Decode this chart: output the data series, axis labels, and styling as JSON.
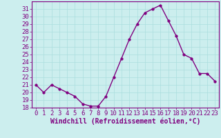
{
  "x": [
    0,
    1,
    2,
    3,
    4,
    5,
    6,
    7,
    8,
    9,
    10,
    11,
    12,
    13,
    14,
    15,
    16,
    17,
    18,
    19,
    20,
    21,
    22,
    23
  ],
  "y": [
    21.0,
    20.0,
    21.0,
    20.5,
    20.0,
    19.5,
    18.5,
    18.2,
    18.2,
    19.5,
    22.0,
    24.5,
    27.0,
    29.0,
    30.5,
    31.0,
    31.5,
    29.5,
    27.5,
    25.0,
    24.5,
    22.5,
    22.5,
    21.5
  ],
  "line_color": "#800080",
  "marker_color": "#800080",
  "bg_color": "#cceeee",
  "grid_color": "#aadddd",
  "axis_color": "#800080",
  "tick_color": "#800080",
  "xlabel": "Windchill (Refroidissement éolien,°C)",
  "ylim": [
    18,
    32
  ],
  "xlim": [
    -0.5,
    23.5
  ],
  "yticks": [
    18,
    19,
    20,
    21,
    22,
    23,
    24,
    25,
    26,
    27,
    28,
    29,
    30,
    31
  ],
  "xticks": [
    0,
    1,
    2,
    3,
    4,
    5,
    6,
    7,
    8,
    9,
    10,
    11,
    12,
    13,
    14,
    15,
    16,
    17,
    18,
    19,
    20,
    21,
    22,
    23
  ],
  "font_size": 6.5,
  "xlabel_font_size": 7,
  "marker_size": 2.5,
  "line_width": 1.0
}
